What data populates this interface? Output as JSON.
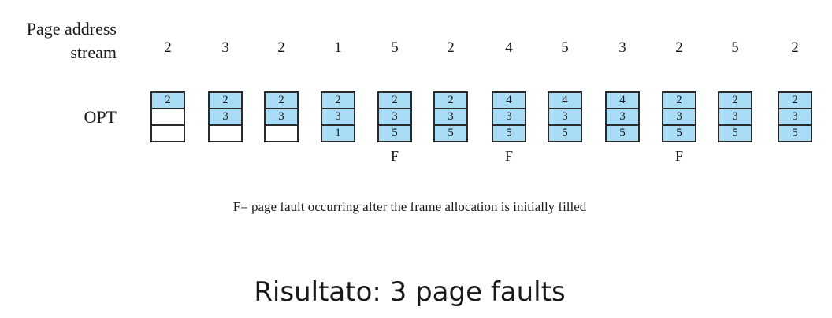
{
  "page_label": "Page address\nstream",
  "opt_label": "OPT",
  "references": [
    "2",
    "3",
    "2",
    "1",
    "5",
    "2",
    "4",
    "5",
    "3",
    "2",
    "5",
    "2"
  ],
  "frames": [
    [
      "2",
      "",
      ""
    ],
    [
      "2",
      "3",
      ""
    ],
    [
      "2",
      "3",
      ""
    ],
    [
      "2",
      "3",
      "1"
    ],
    [
      "2",
      "3",
      "5"
    ],
    [
      "2",
      "3",
      "5"
    ],
    [
      "4",
      "3",
      "5"
    ],
    [
      "4",
      "3",
      "5"
    ],
    [
      "4",
      "3",
      "5"
    ],
    [
      "2",
      "3",
      "5"
    ],
    [
      "2",
      "3",
      "5"
    ],
    [
      "2",
      "3",
      "5"
    ]
  ],
  "faults": [
    "",
    "",
    "",
    "",
    "F",
    "",
    "F",
    "",
    "",
    "F",
    "",
    ""
  ],
  "footnote": "F= page fault occurring after the frame allocation is initially filled",
  "result": "Risultato: 3 page faults",
  "colors": {
    "frame_fill": "#a9ddf6",
    "empty_fill": "#ffffff",
    "border": "#2a2a2a"
  }
}
